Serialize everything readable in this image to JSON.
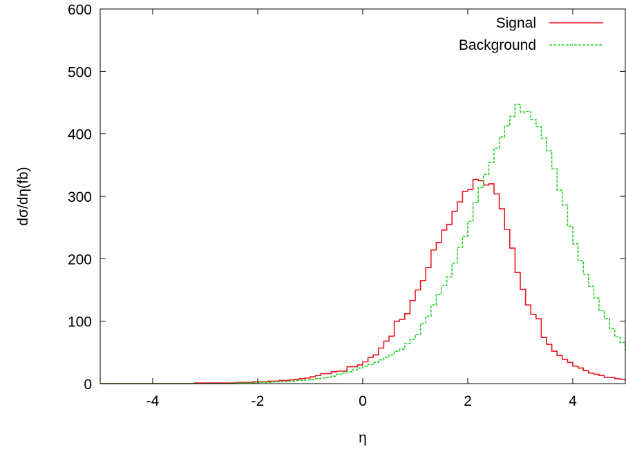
{
  "chart_data": {
    "type": "line",
    "style": "step-histogram",
    "xlabel": "η",
    "ylabel": "dσ/dη(fb)",
    "xlim": [
      -5,
      5
    ],
    "ylim": [
      0,
      600
    ],
    "xticks": [
      -4,
      -2,
      0,
      2,
      4
    ],
    "yticks": [
      0,
      100,
      200,
      300,
      400,
      500,
      600
    ],
    "grid": false,
    "legend_position": "top-right",
    "bin_width": 0.1,
    "x_start": -5.0,
    "series": [
      {
        "name": "Signal",
        "color": "#e8141c",
        "dash": "solid",
        "values": [
          0,
          0,
          0,
          0,
          0,
          0,
          0,
          0,
          0,
          0,
          0,
          0,
          0,
          0,
          0,
          0,
          0,
          0,
          1,
          1,
          1,
          1,
          1,
          1,
          1,
          1,
          2,
          2,
          2,
          3,
          3,
          3,
          4,
          4,
          5,
          5,
          6,
          7,
          8,
          9,
          11,
          13,
          16,
          16,
          19,
          20,
          20,
          27,
          27,
          30,
          35,
          42,
          46,
          57,
          68,
          76,
          100,
          103,
          112,
          133,
          150,
          165,
          186,
          214,
          226,
          246,
          255,
          276,
          291,
          308,
          311,
          327,
          325,
          318,
          320,
          304,
          280,
          247,
          217,
          178,
          151,
          126,
          111,
          104,
          74,
          63,
          52,
          45,
          39,
          34,
          28,
          25,
          21,
          17,
          15,
          13,
          10,
          10,
          8,
          7,
          6,
          5,
          4,
          4,
          3,
          3,
          2,
          2,
          2,
          1,
          1,
          1,
          1,
          1,
          1,
          1,
          1,
          1,
          1,
          1,
          1,
          1,
          1
        ]
      },
      {
        "name": "Background",
        "color": "#1fd41f",
        "dash": "dashed",
        "values": [
          0,
          0,
          0,
          0,
          0,
          0,
          0,
          0,
          0,
          0,
          0,
          0,
          0,
          0,
          0,
          0,
          0,
          0,
          0,
          0,
          0,
          0,
          0,
          0,
          0,
          0,
          1,
          1,
          1,
          1,
          2,
          2,
          2,
          3,
          3,
          3,
          4,
          5,
          5,
          6,
          7,
          8,
          9,
          10,
          12,
          15,
          17,
          19,
          22,
          25,
          28,
          31,
          34,
          38,
          42,
          46,
          52,
          55,
          64,
          71,
          79,
          96,
          108,
          126,
          143,
          157,
          171,
          193,
          218,
          236,
          260,
          290,
          314,
          335,
          354,
          377,
          395,
          413,
          428,
          447,
          435,
          436,
          423,
          412,
          393,
          373,
          344,
          310,
          286,
          252,
          224,
          197,
          175,
          156,
          137,
          117,
          104,
          88,
          75,
          66,
          54,
          47,
          41,
          36,
          31,
          26,
          22,
          19,
          16,
          13,
          12,
          10,
          8,
          7,
          6,
          5,
          4,
          3,
          3,
          2,
          2,
          1,
          1,
          1,
          1,
          1,
          1,
          1
        ]
      }
    ]
  }
}
